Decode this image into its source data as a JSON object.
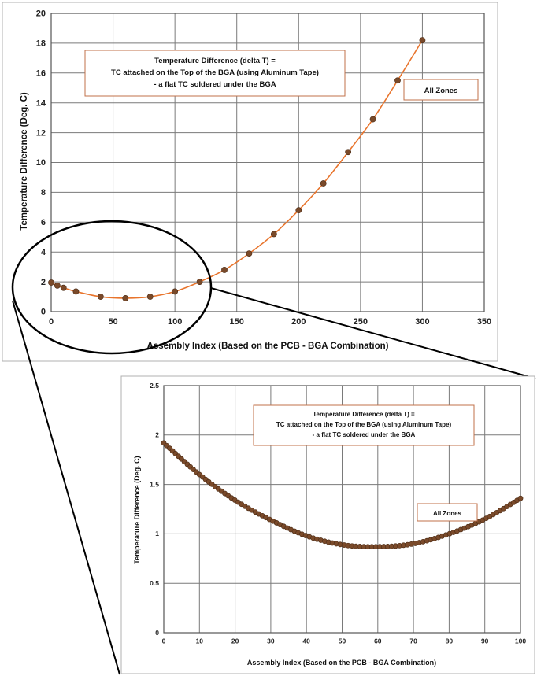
{
  "chart_data": [
    {
      "type": "line",
      "xlabel": "Assembly Index (Based on the PCB - BGA Combination)",
      "ylabel": "Temperature Difference (Deg. C)",
      "xlim": [
        0,
        350
      ],
      "ylim": [
        0,
        20
      ],
      "xticks": [
        "0",
        "50",
        "100",
        "150",
        "200",
        "250",
        "300",
        "350"
      ],
      "yticks": [
        "0",
        "2",
        "4",
        "6",
        "8",
        "10",
        "12",
        "14",
        "16",
        "18",
        "20"
      ],
      "grid": true,
      "line_color": "#E8742C",
      "marker_color": "#7A4A2A",
      "annotation_lines": [
        "Temperature Difference (delta T) =",
        "TC attached on the Top of the BGA (using Aluminum Tape)",
        "- a flat TC soldered under the BGA"
      ],
      "legend_box": "All Zones",
      "series": [
        {
          "x": [
            0,
            5,
            10,
            20,
            40,
            60,
            80,
            100,
            120,
            140,
            160,
            180,
            200,
            220,
            240,
            260,
            280,
            300
          ],
          "values": [
            1.95,
            1.75,
            1.6,
            1.35,
            1.0,
            0.9,
            1.0,
            1.35,
            2.0,
            2.8,
            3.9,
            5.2,
            6.8,
            8.6,
            10.7,
            12.9,
            15.5,
            18.2
          ]
        }
      ]
    },
    {
      "type": "line",
      "xlabel": "Assembly Index (Based on the PCB - BGA Combination)",
      "ylabel": "Temperature Difference (Deg. C)",
      "xlim": [
        0,
        100
      ],
      "ylim": [
        0,
        2.5
      ],
      "xticks": [
        "0",
        "10",
        "20",
        "30",
        "40",
        "50",
        "60",
        "70",
        "80",
        "90",
        "100"
      ],
      "yticks": [
        "0",
        "0.5",
        "1",
        "1.5",
        "2",
        "2.5"
      ],
      "grid": true,
      "line_color": "#E8742C",
      "marker_color": "#7A4A2A",
      "annotation_lines": [
        "Temperature Difference (delta T) =",
        "TC attached on the Top of the BGA (using Aluminum Tape)",
        "- a flat TC soldered under the BGA"
      ],
      "legend_box": "All Zones",
      "series": [
        {
          "x": [
            0,
            10,
            20,
            30,
            40,
            50,
            60,
            70,
            80,
            90,
            100
          ],
          "values": [
            1.92,
            1.6,
            1.34,
            1.14,
            0.98,
            0.89,
            0.87,
            0.9,
            1.0,
            1.15,
            1.36
          ]
        }
      ]
    }
  ]
}
